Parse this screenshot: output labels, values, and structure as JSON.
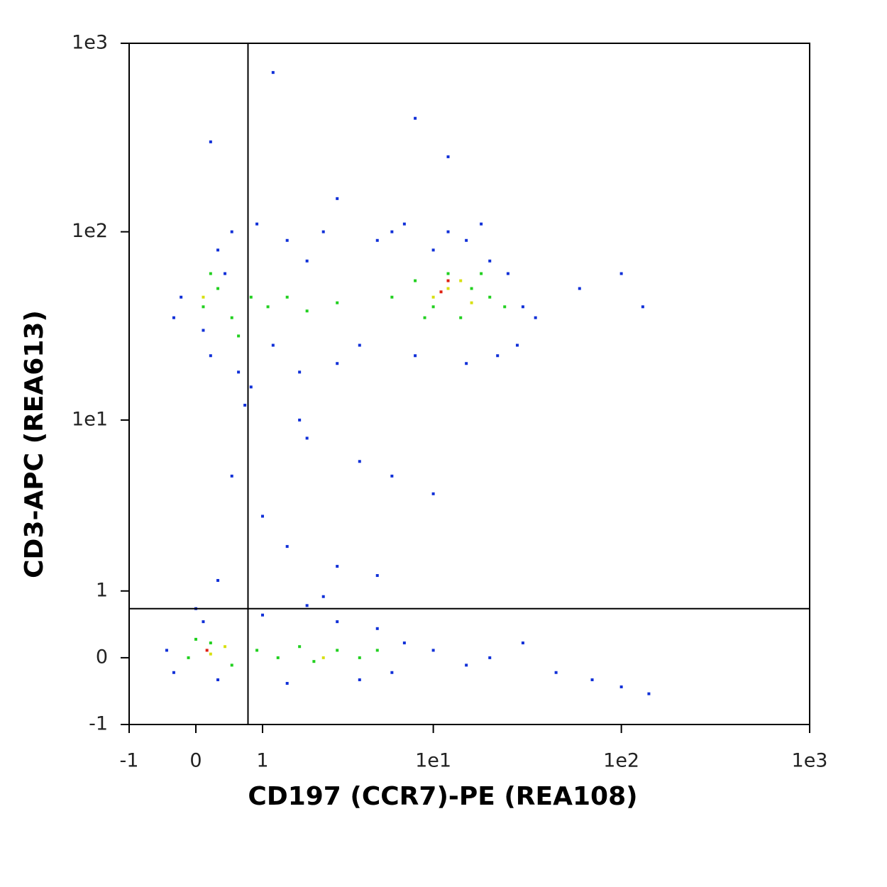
{
  "chart_data": {
    "type": "scatter",
    "x_label": "CD197 (CCR7)-PE (REA108)",
    "y_label": "CD3-APC (REA613)",
    "xscale": "asinh",
    "yscale": "asinh",
    "xlim": [
      -1,
      1000
    ],
    "ylim": [
      -1,
      1000
    ],
    "xticks": [
      -1,
      0,
      1,
      {
        "value": 10,
        "label": "1e1"
      },
      {
        "value": 100,
        "label": "1e2"
      },
      {
        "value": 1000,
        "label": "1e3"
      }
    ],
    "yticks": [
      -1,
      0,
      1,
      {
        "value": 10,
        "label": "1e1"
      },
      {
        "value": 100,
        "label": "1e2"
      },
      {
        "value": 1000,
        "label": "1e3"
      }
    ],
    "quadrant_x": 0.75,
    "quadrant_y": 0.7,
    "series": [
      {
        "color": "#1030d8",
        "x": [
          0.1,
          0.3,
          -0.2,
          0.5,
          0.9,
          1.2,
          0.6,
          0.2,
          1.5,
          2,
          2.5,
          3,
          4,
          1.8,
          0.8,
          0.4,
          -0.3,
          5,
          7,
          10,
          15,
          20,
          25,
          30,
          28,
          22,
          15,
          8,
          6,
          35,
          12,
          18,
          0.5,
          1,
          2,
          4,
          6,
          10,
          1.5,
          3,
          0.3,
          2.5,
          5,
          0.2,
          1.2,
          3,
          8,
          12,
          60,
          100,
          130,
          0.7,
          1.8,
          -0.4,
          -0.3,
          0.1,
          1,
          3,
          5,
          7,
          6,
          4,
          1.5,
          0.3,
          10,
          15,
          20,
          30,
          45,
          70,
          100,
          140,
          0,
          2
        ],
        "values": [
          30,
          80,
          45,
          100,
          110,
          25,
          18,
          22,
          90,
          70,
          100,
          20,
          25,
          18,
          15,
          60,
          35,
          90,
          110,
          80,
          90,
          70,
          60,
          40,
          25,
          22,
          20,
          22,
          100,
          35,
          100,
          110,
          5,
          3,
          8,
          6,
          5,
          4,
          2,
          1.5,
          1.2,
          0.9,
          1.3,
          300,
          700,
          150,
          400,
          250,
          50,
          60,
          40,
          12,
          10,
          0.1,
          -0.2,
          0.5,
          0.6,
          0.5,
          0.4,
          0.2,
          -0.2,
          -0.3,
          -0.35,
          -0.3,
          0.1,
          -0.1,
          0,
          0.2,
          -0.2,
          -0.3,
          -0.4,
          -0.5,
          0.7,
          0.75
        ]
      },
      {
        "color": "#22d020",
        "x": [
          0.1,
          0.3,
          0.5,
          0.8,
          0.2,
          1.1,
          1.5,
          2,
          3,
          0.6,
          6,
          8,
          10,
          12,
          14,
          16,
          20,
          9,
          18,
          24,
          -0.1,
          0.2,
          0.5,
          0.9,
          1.3,
          1.8,
          2.2,
          3,
          4,
          5,
          0
        ],
        "values": [
          40,
          50,
          35,
          45,
          60,
          40,
          45,
          38,
          42,
          28,
          45,
          55,
          40,
          60,
          35,
          50,
          45,
          35,
          60,
          40,
          0,
          0.2,
          -0.1,
          0.1,
          0,
          0.15,
          -0.05,
          0.1,
          0,
          0.1,
          0.25
        ]
      },
      {
        "color": "#d8e010",
        "x": [
          12,
          10,
          14,
          0.2,
          2.5,
          0.4,
          0.1,
          16
        ],
        "values": [
          50,
          45,
          55,
          0.05,
          0,
          0.15,
          45,
          42
        ]
      },
      {
        "color": "#e02010",
        "x": [
          12,
          0.15,
          11
        ],
        "values": [
          55,
          0.1,
          48
        ]
      }
    ]
  }
}
